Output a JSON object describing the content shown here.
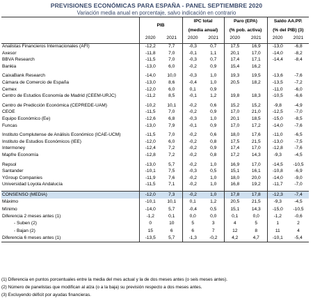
{
  "title": "PREVISIONES ECONÓMICAS PARA ESPAÑA - PANEL SEPTIEMBRE 2020",
  "subtitle": "Variación media anual en porcentaje, salvo indicación en contrario",
  "columns": {
    "pib": "PIB",
    "ipc": "IPC total",
    "ipc_sub": "(media anual)",
    "paro": "Paro (EPA)",
    "paro_sub": "(% pob. activa)",
    "saldo": "Saldo AA.PP.",
    "saldo_sub": "(% del PIB) (3)",
    "years": [
      "2020",
      "2021",
      "2020",
      "2021",
      "2020",
      "2021",
      "2020",
      "2021"
    ]
  },
  "groups": [
    [
      {
        "name": "Analistas Financieros Internacionales (AFI)",
        "v": [
          "-12,2",
          "7,7",
          "-0,3",
          "0,7",
          "17,5",
          "16,9",
          "-13,0",
          "-6,8"
        ]
      },
      {
        "name": "Axesor",
        "v": [
          "-11,8",
          "7,0",
          "-0,1",
          "1,1",
          "20,1",
          "17,0",
          "-14,0",
          "-8,2"
        ]
      },
      {
        "name": "BBVA Research",
        "v": [
          "-11,5",
          "7,0",
          "-0,3",
          "0,7",
          "17,4",
          "17,1",
          "-14,4",
          "-8,4"
        ]
      },
      {
        "name": "Bankia",
        "v": [
          "-13,0",
          "6,0",
          "-0,2",
          "0,9",
          "15,4",
          "16,2",
          "",
          ""
        ]
      }
    ],
    [
      {
        "name": "CaixaBank Research",
        "v": [
          "-14,0",
          "10,0",
          "-0,3",
          "1,0",
          "19,3",
          "19,5",
          "-13,6",
          "-7,6"
        ]
      },
      {
        "name": "Cámara de Comercio de España",
        "v": [
          "-13,0",
          "8,6",
          "-0,4",
          "1,0",
          "20,5",
          "18,2",
          "-13,5",
          "-7,2"
        ]
      },
      {
        "name": "Cemex",
        "v": [
          "-12,0",
          "6,0",
          "0,1",
          "0,9",
          "",
          "",
          "-11,0",
          "-6,0"
        ]
      },
      {
        "name": "Centro de Estudios Economía de Madrid (CEEM-URJC)",
        "v": [
          "-11,2",
          "8,5",
          "-0,1",
          "1,2",
          "19,8",
          "18,3",
          "-10,5",
          "-6,6"
        ]
      }
    ],
    [
      {
        "name": "Centro de Predicción Económica (CEPREDE-UAM)",
        "v": [
          "-10,2",
          "10,1",
          "-0,2",
          "0,6",
          "15,2",
          "15,2",
          "-9,8",
          "-4,9"
        ]
      },
      {
        "name": "CEOE",
        "v": [
          "-11,5",
          "7,0",
          "-0,2",
          "0,9",
          "17,0",
          "21,0",
          "-12,5",
          "-7,0"
        ]
      },
      {
        "name": "Equipo Económico (Ee)",
        "v": [
          "-12,6",
          "6,8",
          "-0,3",
          "1,0",
          "20,1",
          "18,5",
          "-15,0",
          "-8,5"
        ]
      },
      {
        "name": "Funcas",
        "v": [
          "-13,0",
          "7,9",
          "-0,1",
          "0,9",
          "17,0",
          "17,2",
          "-14,0",
          "-7,6"
        ]
      }
    ],
    [
      {
        "name": "Instituto Complutense de Análisis Económico (ICAE-UCM)",
        "v": [
          "-11,5",
          "7,0",
          "-0,2",
          "0,6",
          "18,0",
          "17,6",
          "-11,0",
          "-6,5"
        ]
      },
      {
        "name": "Instituto de Estudios Económicos (IEE)",
        "v": [
          "-12,0",
          "6,0",
          "-0,2",
          "0,8",
          "17,5",
          "21,5",
          "-13,0",
          "-7,5"
        ]
      },
      {
        "name": "Intermoney",
        "v": [
          "-12,4",
          "7,2",
          "-0,2",
          "0,9",
          "17,4",
          "17,0",
          "-12,8",
          "-7,6"
        ]
      },
      {
        "name": "Mapfre Economía",
        "v": [
          "-12,8",
          "7,2",
          "-0,2",
          "0,8",
          "17,2",
          "14,3",
          "-9,3",
          "-4,5"
        ]
      }
    ],
    [
      {
        "name": "Repsol",
        "v": [
          "-13,0",
          "5,7",
          "-0,2",
          "1,0",
          "16,9",
          "17,0",
          "-14,5",
          "-10,5"
        ]
      },
      {
        "name": "Santander",
        "v": [
          "-10,1",
          "7,5",
          "-0,3",
          "0,5",
          "15,1",
          "16,1",
          "-10,8",
          "-6,9"
        ]
      },
      {
        "name": "YGroup Companies",
        "v": [
          "-11,9",
          "7,6",
          "-0,2",
          "1,0",
          "18,0",
          "20,0",
          "-14,0",
          "-9,0"
        ]
      },
      {
        "name": "Universidad Loyola Andalucía",
        "v": [
          "-11,5",
          "7,1",
          "-0,2",
          "1,0",
          "16,8",
          "19,2",
          "-11,7",
          "-7,0"
        ]
      }
    ]
  ],
  "summary": [
    {
      "name": "CONSENSO (MEDIA)",
      "v": [
        "-12,0",
        "7,3",
        "-0,2",
        "1,0",
        "17,8",
        "17,8",
        "-12,3",
        "-7,4"
      ],
      "cls": "cons"
    },
    {
      "name": "Máximo",
      "v": [
        "-10,1",
        "10,1",
        "0,1",
        "1,2",
        "20,5",
        "21,5",
        "-9,3",
        "-4,5"
      ]
    },
    {
      "name": "Mínimo",
      "v": [
        "-14,0",
        "5,7",
        "-0,4",
        "0,5",
        "15,1",
        "14,3",
        "-15,0",
        "-10,5"
      ]
    },
    {
      "name": "Diferencia 2 meses antes (1)",
      "v": [
        "-1,2",
        "0,1",
        "0,0",
        "0,0",
        "0,1",
        "0,0",
        "-1,2",
        "-0,6"
      ]
    },
    {
      "name": "- Suben (2)",
      "v": [
        "0",
        "10",
        "5",
        "3",
        "4",
        "5",
        "1",
        "2"
      ],
      "indent": true
    },
    {
      "name": "- Bajan (2)",
      "v": [
        "15",
        "6",
        "6",
        "7",
        "12",
        "8",
        "11",
        "4"
      ],
      "indent": true
    },
    {
      "name": "Diferencia 6 meses antes (1)",
      "v": [
        "-13,5",
        "5,7",
        "-1,3",
        "-0,2",
        "4,2",
        "4,7",
        "-10,1",
        "-5,4"
      ]
    }
  ],
  "footnotes": [
    "(1) Diferencia en puntos porcentuales entre la media del mes actual y la de dos meses antes (o seis meses antes).",
    "(2) Número de panelistas que modifican al alza (o a la baja) su previsión respecto a dos meses antes.",
    "(3) Excluyendo déficit por ayudas financieras."
  ]
}
